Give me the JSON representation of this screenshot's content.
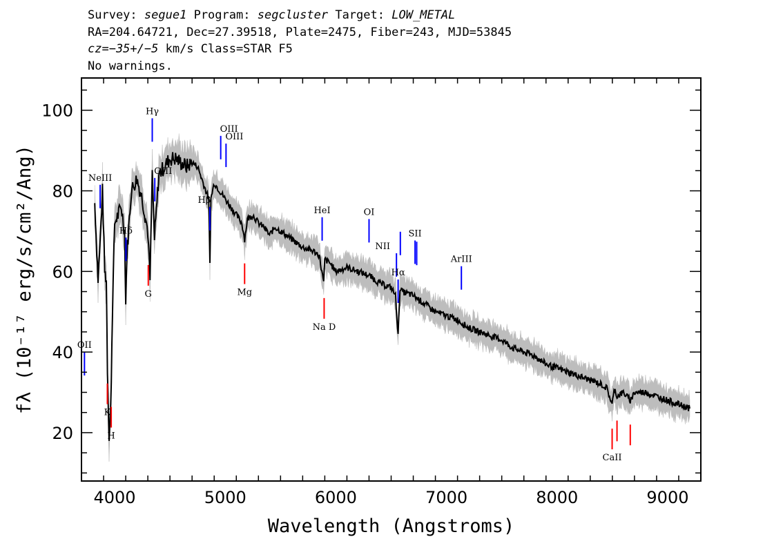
{
  "header": {
    "line1": {
      "survey_label": "Survey:",
      "survey": "segue1",
      "program_label": "Program:",
      "program": "segcluster",
      "target_label": "Target:",
      "target": "LOW_METAL"
    },
    "line2": "RA=204.64721, Dec=27.39518, Plate=2475, Fiber=243, MJD=53845",
    "line3": {
      "cz": "cz=−35+/−5",
      "rest": " km/s Class=STAR F5"
    },
    "line4": "No warnings."
  },
  "colors": {
    "flux": "#000000",
    "error_band": "#bdbdbd",
    "emission": "#0000ff",
    "absorption": "#ff0000",
    "axes": "#000000"
  },
  "chart_data": {
    "type": "line",
    "xlabel": "Wavelength (Angstroms)",
    "ylabel": "fλ (10⁻¹⁷ erg/s/cm²/Ang)",
    "xlim": [
      3700,
      9300
    ],
    "ylim": [
      8,
      108
    ],
    "xticks": [
      4000,
      5000,
      6000,
      7000,
      8000,
      9000
    ],
    "yticks": [
      20,
      40,
      60,
      80,
      100
    ],
    "grid": false,
    "series": [
      {
        "x": [
          3820,
          3850,
          3870,
          3890,
          3910,
          3925,
          3935,
          3950,
          3965,
          3980,
          4000,
          4030,
          4060,
          4090,
          4100,
          4110,
          4150,
          4200,
          4250,
          4300,
          4320,
          4340,
          4360,
          4400,
          4450,
          4500,
          4550,
          4600,
          4650,
          4700,
          4750,
          4800,
          4850,
          4861,
          4870,
          4900,
          4950,
          5000,
          5050,
          5100,
          5150,
          5175,
          5200,
          5250,
          5300,
          5350,
          5400,
          5450,
          5500,
          5600,
          5700,
          5800,
          5850,
          5890,
          5900,
          5950,
          6000,
          6100,
          6200,
          6300,
          6400,
          6500,
          6540,
          6563,
          6580,
          6600,
          6700,
          6800,
          6900,
          7000,
          7100,
          7200,
          7300,
          7400,
          7500,
          7600,
          7700,
          7800,
          7900,
          8000,
          8100,
          8200,
          8300,
          8400,
          8450,
          8498,
          8520,
          8542,
          8600,
          8662,
          8700,
          8800,
          8900,
          9000,
          9100,
          9200
        ],
        "y": [
          77,
          58,
          68,
          80,
          60,
          58,
          36,
          19,
          26,
          50,
          72,
          74,
          76,
          70,
          52,
          64,
          80,
          83,
          78,
          70,
          58,
          84,
          68,
          84,
          86,
          88,
          88,
          87,
          86,
          87,
          86,
          82,
          78,
          62,
          78,
          82,
          80,
          78,
          76,
          74,
          72,
          68,
          73,
          74,
          72,
          71,
          69,
          71,
          70,
          68,
          66,
          65,
          64,
          57,
          63,
          62,
          60,
          61,
          60,
          59,
          57,
          56,
          54,
          44,
          56,
          55,
          54,
          52,
          50,
          49,
          48,
          46,
          45,
          44,
          43,
          41,
          40,
          39,
          37,
          36,
          35,
          34,
          33,
          32,
          31,
          27,
          31,
          29,
          30,
          28,
          30,
          30,
          29,
          28,
          27,
          26
        ]
      }
    ],
    "line_markers": {
      "emission": [
        {
          "label": "OII",
          "x": 3727
        },
        {
          "label": "NeIII",
          "x": 3869
        },
        {
          "label": "Hδ",
          "x": 4102
        },
        {
          "label": "Hγ",
          "x": 4340
        },
        {
          "label": "OIII",
          "x": 4363
        },
        {
          "label": "Hβ",
          "x": 4861
        },
        {
          "label": "OIII",
          "x": 4959
        },
        {
          "label": "OIII",
          "x": 5007
        },
        {
          "label": "HeI",
          "x": 5876
        },
        {
          "label": "OI",
          "x": 6300
        },
        {
          "label": "NII",
          "x": 6548
        },
        {
          "label": "Hα",
          "x": 6563
        },
        {
          "label": "NII",
          "x": 6583
        },
        {
          "label": "SII",
          "x": 6716
        },
        {
          "label": "SII",
          "x": 6731
        },
        {
          "label": "ArIII",
          "x": 7135
        }
      ],
      "absorption": [
        {
          "label": "K",
          "x": 3934
        },
        {
          "label": "H",
          "x": 3969
        },
        {
          "label": "G",
          "x": 4304
        },
        {
          "label": "Mg",
          "x": 5175
        },
        {
          "label": "Na  D",
          "x": 5894
        },
        {
          "label": "CaII",
          "x": 8498
        },
        {
          "label": "CaII",
          "x": 8542
        },
        {
          "label": "CaII",
          "x": 8662
        }
      ]
    }
  }
}
